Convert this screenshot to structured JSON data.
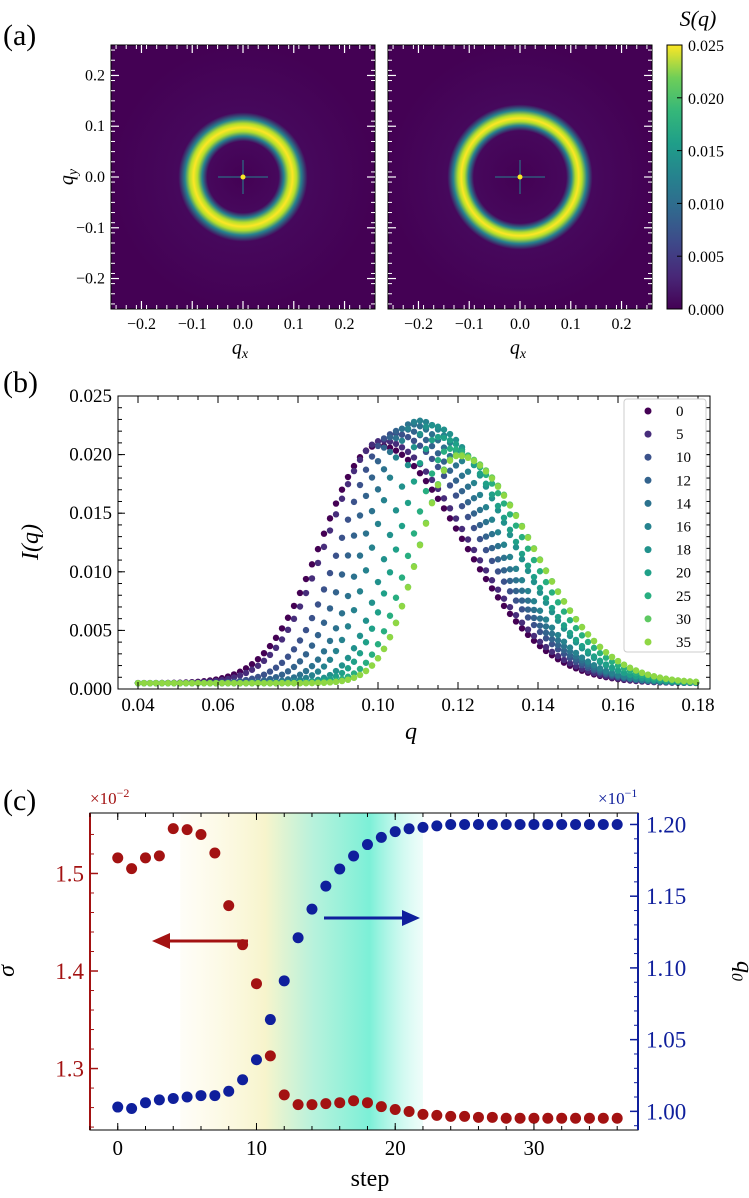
{
  "panel_labels": {
    "a": "(a)",
    "b": "(b)",
    "c": "(c)"
  },
  "colors": {
    "sigma": "#a31212",
    "q0": "#0f1f9c",
    "heatmap_low": "#440154",
    "heatmap_high": "#fde725"
  },
  "chart_data": [
    {
      "type": "heatmap",
      "panel": "a-left",
      "xlabel": "q",
      "xlabel_sub": "x",
      "ylabel": "q",
      "ylabel_sub": "y",
      "xlim": [
        -0.26,
        0.26
      ],
      "ylim": [
        -0.26,
        0.26
      ],
      "xticks": [
        -0.2,
        -0.1,
        0.0,
        0.1,
        0.2
      ],
      "xtick_labels": [
        "−0.2",
        "−0.1",
        "0.0",
        "0.1",
        "0.2"
      ],
      "yticks": [
        0.2,
        0.1,
        0.0,
        -0.1,
        -0.2
      ],
      "ytick_labels": [
        "0.2",
        "0.1",
        "0.0",
        "−0.1",
        "−0.2"
      ],
      "ring_radius": 0.1,
      "ring_width": 0.02,
      "colormap": "viridis"
    },
    {
      "type": "heatmap",
      "panel": "a-right",
      "xlabel": "q",
      "xlabel_sub": "x",
      "xlim": [
        -0.26,
        0.26
      ],
      "ylim": [
        -0.26,
        0.26
      ],
      "xticks": [
        -0.2,
        -0.1,
        0.0,
        0.1,
        0.2
      ],
      "xtick_labels": [
        "−0.2",
        "−0.1",
        "0.0",
        "0.1",
        "0.2"
      ],
      "ring_radius": 0.12,
      "ring_width": 0.02,
      "colormap": "viridis",
      "colorbar": {
        "title": "S(q)",
        "min": 0.0,
        "max": 0.025,
        "ticks": [
          0.025,
          0.02,
          0.015,
          0.01,
          0.005,
          0.0
        ],
        "tick_labels": [
          "0.025",
          "0.020",
          "0.015",
          "0.010",
          "0.005",
          "0.000"
        ]
      }
    },
    {
      "type": "scatter",
      "panel": "b",
      "xlabel": "q",
      "ylabel": "I(q)",
      "xlim": [
        0.035,
        0.183
      ],
      "ylim": [
        0.0,
        0.025
      ],
      "xticks": [
        0.04,
        0.06,
        0.08,
        0.1,
        0.12,
        0.14,
        0.16,
        0.18
      ],
      "xtick_labels": [
        "0.04",
        "0.06",
        "0.08",
        "0.10",
        "0.12",
        "0.14",
        "0.16",
        "0.18"
      ],
      "yticks": [
        0.0,
        0.005,
        0.01,
        0.015,
        0.02,
        0.025
      ],
      "ytick_labels": [
        "0.000",
        "0.005",
        "0.010",
        "0.015",
        "0.020",
        "0.025"
      ],
      "legend_position": "top-right",
      "series": [
        {
          "name": "0",
          "color": "#440154",
          "peak_q": 0.1,
          "peak_I": 0.0208,
          "width_left": 0.014,
          "width_right": 0.021
        },
        {
          "name": "5",
          "color": "#472d7b",
          "peak_q": 0.101,
          "peak_I": 0.0212,
          "width_left": 0.0135,
          "width_right": 0.021
        },
        {
          "name": "10",
          "color": "#3b528b",
          "peak_q": 0.104,
          "peak_I": 0.0218,
          "width_left": 0.0125,
          "width_right": 0.0205
        },
        {
          "name": "12",
          "color": "#33638d",
          "peak_q": 0.106,
          "peak_I": 0.0222,
          "width_left": 0.0115,
          "width_right": 0.02
        },
        {
          "name": "14",
          "color": "#2c728e",
          "peak_q": 0.108,
          "peak_I": 0.0226,
          "width_left": 0.0105,
          "width_right": 0.0195
        },
        {
          "name": "16",
          "color": "#26828e",
          "peak_q": 0.11,
          "peak_I": 0.0229,
          "width_left": 0.01,
          "width_right": 0.019
        },
        {
          "name": "18",
          "color": "#21918c",
          "peak_q": 0.113,
          "peak_I": 0.0225,
          "width_left": 0.0095,
          "width_right": 0.019
        },
        {
          "name": "20",
          "color": "#1fa088",
          "peak_q": 0.115,
          "peak_I": 0.0215,
          "width_left": 0.0095,
          "width_right": 0.0185
        },
        {
          "name": "25",
          "color": "#28ae80",
          "peak_q": 0.118,
          "peak_I": 0.0205,
          "width_left": 0.0095,
          "width_right": 0.0185
        },
        {
          "name": "30",
          "color": "#5ec962",
          "peak_q": 0.12,
          "peak_I": 0.02,
          "width_left": 0.0095,
          "width_right": 0.0185
        },
        {
          "name": "35",
          "color": "#8fd744",
          "peak_q": 0.12,
          "peak_I": 0.0199,
          "width_left": 0.0095,
          "width_right": 0.0185
        }
      ]
    },
    {
      "type": "scatter",
      "panel": "c",
      "xlabel": "step",
      "xlim": [
        -2,
        37.5
      ],
      "xticks": [
        0,
        10,
        20,
        30
      ],
      "xtick_labels": [
        "0",
        "10",
        "20",
        "30"
      ],
      "left_axis": {
        "label": "σ",
        "scale_label": "×10",
        "scale_exp": "−2",
        "ylim": [
          1.237,
          1.562
        ],
        "ticks": [
          1.3,
          1.4,
          1.5
        ],
        "tick_labels": [
          "1.3",
          "1.4",
          "1.5"
        ]
      },
      "right_axis": {
        "label": "q",
        "label_sub": "0",
        "scale_label": "×10",
        "scale_exp": "−1",
        "ylim": [
          0.987,
          1.208
        ],
        "ticks": [
          1.0,
          1.05,
          1.1,
          1.15,
          1.2
        ],
        "tick_labels": [
          "1.00",
          "1.05",
          "1.10",
          "1.15",
          "1.20"
        ]
      },
      "shaded_region": {
        "from": 4.5,
        "to": 22
      },
      "series": [
        {
          "name": "σ",
          "axis": "left",
          "x": [
            0,
            1,
            2,
            3,
            4,
            5,
            6,
            7,
            8,
            9,
            10,
            11,
            12,
            13,
            14,
            15,
            16,
            17,
            18,
            19,
            20,
            21,
            22,
            23,
            24,
            25,
            26,
            27,
            28,
            29,
            30,
            31,
            32,
            33,
            34,
            35,
            36
          ],
          "y": [
            1.516,
            1.505,
            1.516,
            1.518,
            1.546,
            1.545,
            1.54,
            1.521,
            1.467,
            1.427,
            1.387,
            1.313,
            1.273,
            1.263,
            1.263,
            1.264,
            1.265,
            1.267,
            1.265,
            1.261,
            1.258,
            1.256,
            1.253,
            1.252,
            1.251,
            1.251,
            1.25,
            1.25,
            1.249,
            1.249,
            1.249,
            1.249,
            1.249,
            1.249,
            1.249,
            1.249,
            1.249
          ]
        },
        {
          "name": "q0",
          "axis": "right",
          "x": [
            0,
            1,
            2,
            3,
            4,
            5,
            6,
            7,
            8,
            9,
            10,
            11,
            12,
            13,
            14,
            15,
            16,
            17,
            18,
            19,
            20,
            21,
            22,
            23,
            24,
            25,
            26,
            27,
            28,
            29,
            30,
            31,
            32,
            33,
            34,
            35,
            36
          ],
          "y": [
            1.003,
            1.002,
            1.006,
            1.008,
            1.009,
            1.01,
            1.011,
            1.011,
            1.014,
            1.022,
            1.036,
            1.064,
            1.091,
            1.121,
            1.141,
            1.157,
            1.169,
            1.178,
            1.186,
            1.191,
            1.195,
            1.197,
            1.198,
            1.199,
            1.2,
            1.2,
            1.2,
            1.2,
            1.2,
            1.2,
            1.2,
            1.2,
            1.2,
            1.2,
            1.2,
            1.2,
            1.2
          ]
        }
      ]
    }
  ]
}
